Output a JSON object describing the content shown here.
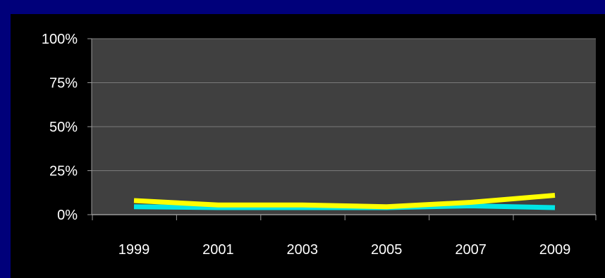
{
  "chart_data": {
    "type": "line",
    "categories": [
      "1999",
      "2001",
      "2003",
      "2005",
      "2007",
      "2009"
    ],
    "x_tick_labels": [
      "1999",
      "2001",
      "2003",
      "2005",
      "2007",
      "2009"
    ],
    "y_tick_labels": [
      "0%",
      "25%",
      "50%",
      "75%",
      "100%"
    ],
    "y_ticks": [
      0,
      25,
      50,
      75,
      100
    ],
    "ylim": [
      0,
      100
    ],
    "grid": true,
    "series": [
      {
        "color": "#00e5e5",
        "values": [
          4.5,
          4,
          4,
          4,
          5,
          4
        ]
      },
      {
        "color": "#ffff00",
        "values": [
          8,
          5.5,
          5.5,
          4.5,
          7,
          11
        ]
      }
    ],
    "plot_background": "#404040",
    "gridline_color": "#7a7a7a"
  },
  "colors": {
    "border": "#00007a",
    "panel": "#000000"
  }
}
